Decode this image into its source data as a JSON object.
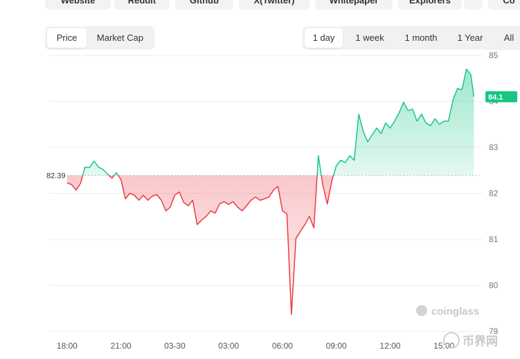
{
  "top_links": [
    "Website",
    "Reddit",
    "Github",
    "X(Twitter)",
    "Whitepaper",
    "Explorers",
    "Co"
  ],
  "tabs": [
    "Price",
    "Market Cap"
  ],
  "ranges": [
    "1 day",
    "1 week",
    "1 month",
    "1 Year",
    "All"
  ],
  "chart_data": {
    "type": "line",
    "x": [
      0,
      0.25,
      0.5,
      0.75,
      1,
      1.25,
      1.5,
      1.75,
      2,
      2.25,
      2.5,
      2.75,
      3,
      3.25,
      3.5,
      3.75,
      4,
      4.25,
      4.5,
      4.75,
      5,
      5.25,
      5.5,
      5.75,
      6,
      6.25,
      6.5,
      6.75,
      7,
      7.25,
      7.5,
      7.75,
      8,
      8.25,
      8.5,
      8.75,
      9,
      9.25,
      9.5,
      9.75,
      10,
      10.25,
      10.5,
      10.75,
      11,
      11.25,
      11.5,
      11.75,
      12,
      12.25,
      12.5,
      12.75,
      13,
      13.25,
      13.5,
      13.75,
      14,
      14.25,
      14.5,
      14.75,
      15,
      15.25,
      15.5,
      15.75,
      16,
      16.25,
      16.5,
      16.75,
      17,
      17.25,
      17.5,
      17.75,
      18,
      18.25,
      18.5,
      18.75,
      19,
      19.25,
      19.5,
      19.75,
      20,
      20.25,
      20.5,
      20.75,
      21,
      21.25,
      21.5,
      21.75,
      22,
      22.25,
      22.5,
      22.67
    ],
    "values": [
      82.23,
      82.19,
      82.07,
      82.22,
      82.57,
      82.56,
      82.7,
      82.57,
      82.52,
      82.42,
      82.33,
      82.45,
      82.3,
      81.88,
      82.0,
      81.96,
      81.85,
      81.96,
      81.85,
      81.94,
      81.97,
      81.85,
      81.62,
      81.7,
      81.96,
      82.03,
      81.8,
      81.73,
      81.85,
      81.32,
      81.42,
      81.5,
      81.62,
      81.57,
      81.77,
      81.82,
      81.76,
      81.82,
      81.7,
      81.62,
      81.73,
      81.85,
      81.92,
      81.85,
      81.88,
      81.92,
      82.07,
      82.15,
      81.62,
      81.55,
      79.37,
      81.02,
      81.17,
      81.32,
      81.5,
      81.25,
      82.82,
      82.18,
      81.77,
      82.27,
      82.6,
      82.72,
      82.67,
      82.82,
      82.72,
      83.72,
      83.35,
      83.12,
      83.27,
      83.42,
      83.3,
      83.53,
      83.42,
      83.57,
      83.75,
      83.98,
      83.8,
      83.83,
      83.57,
      83.72,
      83.53,
      83.47,
      83.62,
      83.5,
      83.57,
      83.57,
      84.02,
      84.28,
      84.25,
      84.7,
      84.58,
      84.1
    ],
    "baseline": 82.39,
    "last_value": 84.1,
    "colors": {
      "up": "#16c784",
      "down": "#ea3943"
    },
    "xlim": [
      -1,
      23
    ],
    "ylim": [
      79,
      85
    ],
    "xticks": [
      {
        "value": 0,
        "label": "18:00"
      },
      {
        "value": 3,
        "label": "21:00"
      },
      {
        "value": 6,
        "label": "03-30"
      },
      {
        "value": 9,
        "label": "03:00"
      },
      {
        "value": 12,
        "label": "06:00"
      },
      {
        "value": 15,
        "label": "09:00"
      },
      {
        "value": 18,
        "label": "12:00"
      },
      {
        "value": 21,
        "label": "15:00"
      }
    ],
    "yticks": [
      79,
      80,
      81,
      82,
      83,
      84,
      85
    ],
    "grid": true,
    "watermark": "coinglass"
  },
  "site_mark": "币界网"
}
